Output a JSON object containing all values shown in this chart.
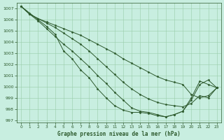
{
  "xlabel": "Graphe pression niveau de la mer (hPa)",
  "bg_color": "#c8eee0",
  "grid_color": "#99ccaa",
  "line_color": "#2d5a2d",
  "marker": "D",
  "markersize": 1.5,
  "linewidth": 0.7,
  "xlim": [
    -0.5,
    23.5
  ],
  "ylim": [
    996.8,
    1007.5
  ],
  "yticks": [
    997,
    998,
    999,
    1000,
    1001,
    1002,
    1003,
    1004,
    1005,
    1006,
    1007
  ],
  "xticks": [
    0,
    1,
    2,
    3,
    4,
    5,
    6,
    7,
    8,
    9,
    10,
    11,
    12,
    13,
    14,
    15,
    16,
    17,
    18,
    19,
    20,
    21,
    22,
    23
  ],
  "series": [
    [
      1007.2,
      1006.6,
      1006.0,
      1005.4,
      1004.7,
      1003.2,
      1002.5,
      1001.5,
      1000.8,
      999.8,
      999.0,
      998.3,
      997.9,
      997.7,
      997.7,
      997.6,
      997.4,
      997.3,
      997.5,
      997.8,
      999.0,
      1000.5,
      1000.2,
      999.9
    ],
    [
      1007.2,
      1006.5,
      1005.9,
      1005.2,
      1004.5,
      1003.8,
      1003.2,
      1002.5,
      1001.8,
      1001.0,
      1000.3,
      999.5,
      998.8,
      998.1,
      997.8,
      997.7,
      997.5,
      997.3,
      997.5,
      997.8,
      998.8,
      1000.2,
      1000.6,
      999.9
    ],
    [
      1007.2,
      1006.5,
      1006.1,
      1005.7,
      1005.3,
      1004.8,
      1004.3,
      1003.8,
      1003.2,
      1002.5,
      1001.8,
      1001.1,
      1000.4,
      999.8,
      999.3,
      998.9,
      998.6,
      998.4,
      998.3,
      998.2,
      998.5,
      999.2,
      999.0,
      999.9
    ],
    [
      1007.2,
      1006.5,
      1006.1,
      1005.8,
      1005.5,
      1005.2,
      1004.9,
      1004.6,
      1004.2,
      1003.8,
      1003.4,
      1003.0,
      1002.5,
      1002.1,
      1001.7,
      1001.3,
      1000.9,
      1000.6,
      1000.4,
      1000.2,
      999.3,
      999.0,
      999.2,
      999.9
    ]
  ]
}
